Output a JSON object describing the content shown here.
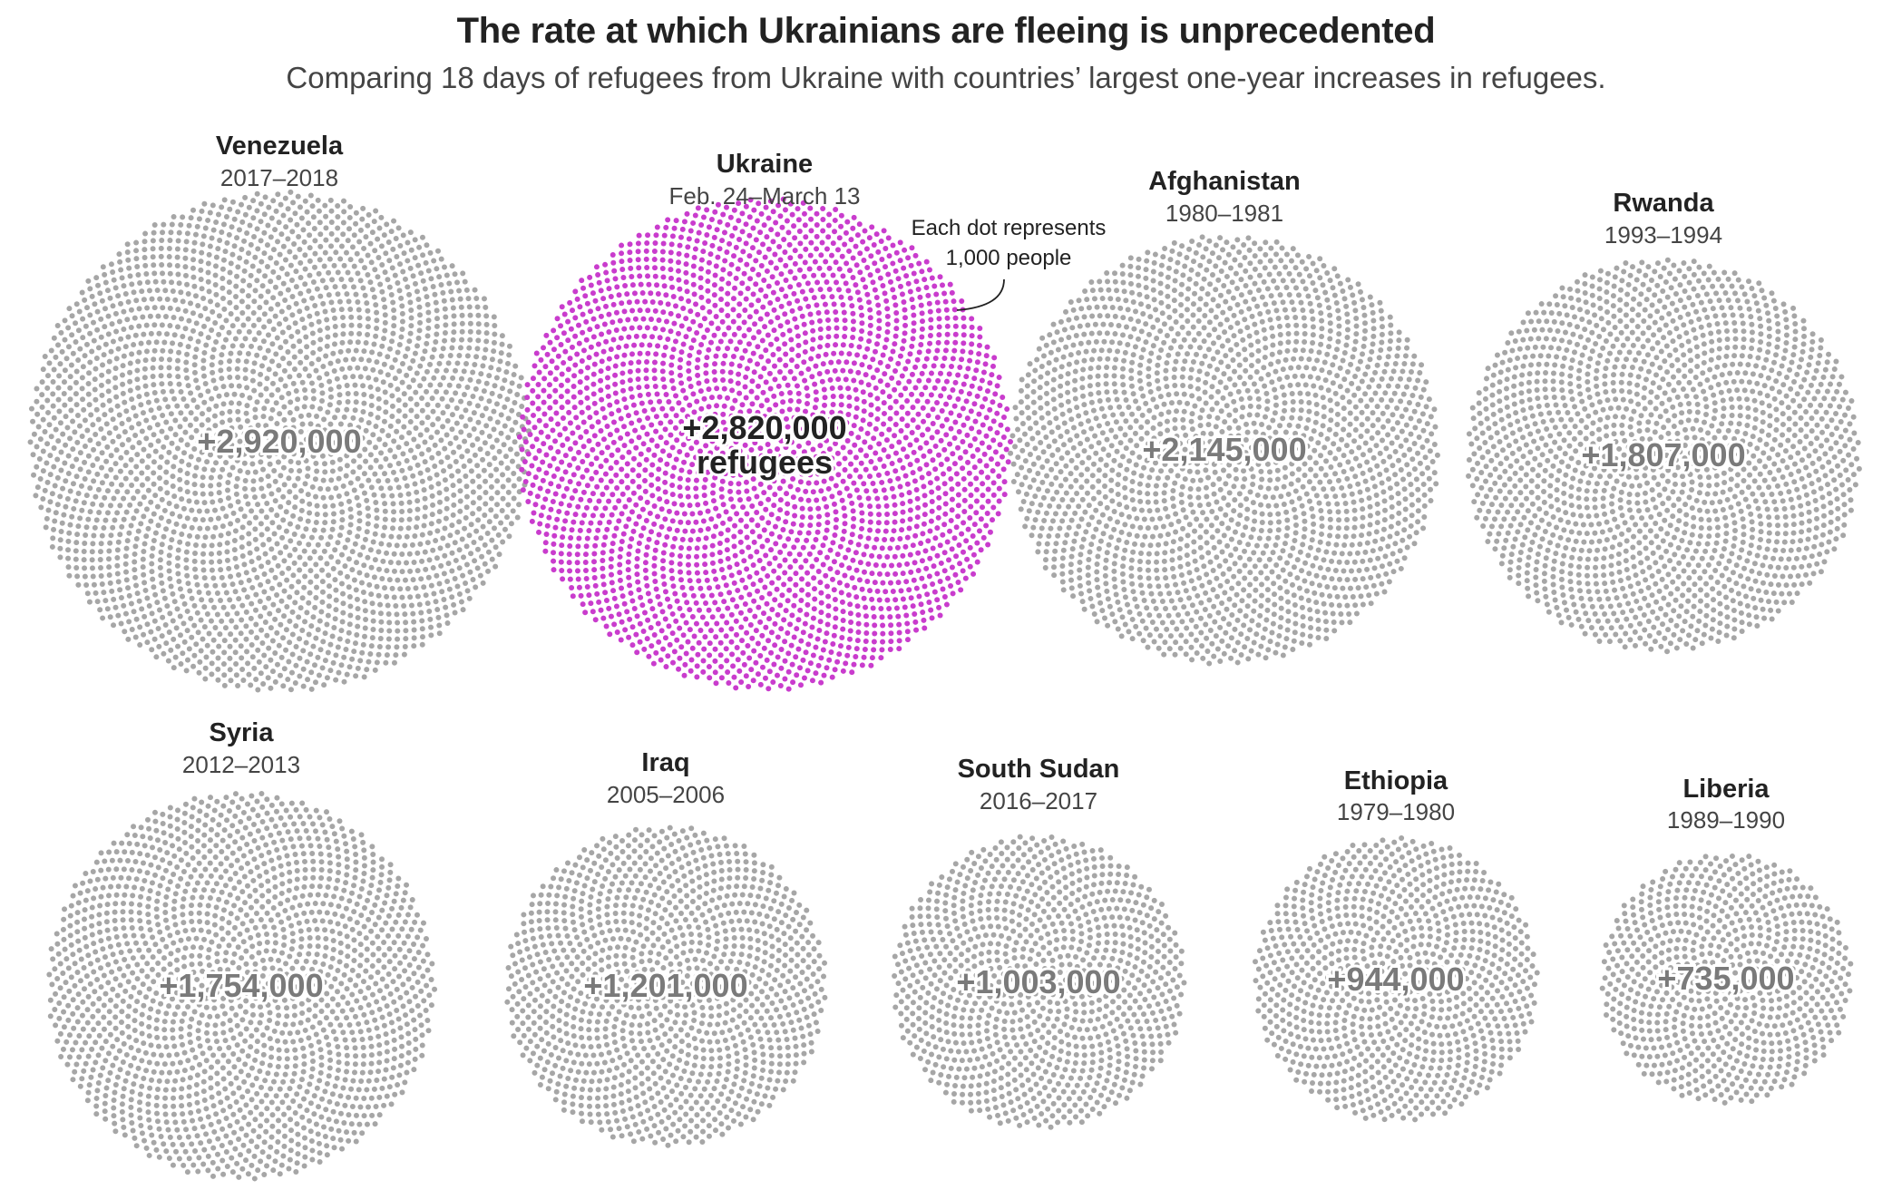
{
  "header": {
    "title": "The rate at which Ukrainians are fleeing is unprecedented",
    "subtitle": "Comparing 18 days of refugees from Ukraine with countries’ largest one-year increases in refugees."
  },
  "annotation": {
    "line1": "Each dot represents",
    "line2": "1,000 people"
  },
  "colors": {
    "highlight_dot": "#c93ccd",
    "default_dot": "#a6a6a6"
  },
  "chart_data": {
    "type": "dot-cluster",
    "unit": "Each dot represents 1,000 people",
    "countries": [
      {
        "name": "Venezuela",
        "period": "2017–2018",
        "refugees": 2920000,
        "label": "+2,920,000",
        "highlight": false
      },
      {
        "name": "Ukraine",
        "period": "Feb. 24–March 13",
        "refugees": 2820000,
        "label": "+2,820,000",
        "label_suffix": "refugees",
        "highlight": true
      },
      {
        "name": "Afghanistan",
        "period": "1980–1981",
        "refugees": 2145000,
        "label": "+2,145,000",
        "highlight": false
      },
      {
        "name": "Rwanda",
        "period": "1993–1994",
        "refugees": 1807000,
        "label": "+1,807,000",
        "highlight": false
      },
      {
        "name": "Syria",
        "period": "2012–2013",
        "refugees": 1754000,
        "label": "+1,754,000",
        "highlight": false
      },
      {
        "name": "Iraq",
        "period": "2005–2006",
        "refugees": 1201000,
        "label": "+1,201,000",
        "highlight": false
      },
      {
        "name": "South Sudan",
        "period": "2016–2017",
        "refugees": 1003000,
        "label": "+1,003,000",
        "highlight": false
      },
      {
        "name": "Ethiopia",
        "period": "1979–1980",
        "refugees": 944000,
        "label": "+944,000",
        "highlight": false
      },
      {
        "name": "Liberia",
        "period": "1989–1990",
        "refugees": 735000,
        "label": "+735,000",
        "highlight": false
      }
    ]
  }
}
